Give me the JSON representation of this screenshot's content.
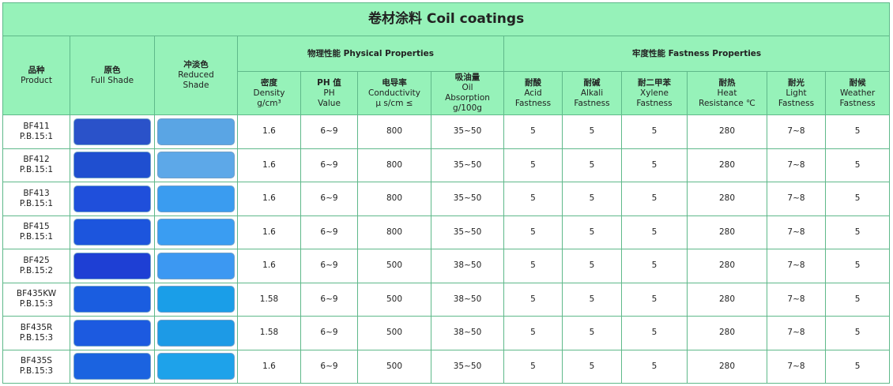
{
  "header": {
    "title": "卷材涂料 Coil coatings",
    "groups": [
      "物理性能 Physical Properties",
      "牢度性能 Fastness Properties"
    ],
    "columns": [
      [
        "品种",
        "Product"
      ],
      [
        "原色",
        "Full Shade"
      ],
      [
        "冲淡色",
        "Reduced",
        "Shade"
      ],
      [
        "密度",
        "Density",
        "g/cm³"
      ],
      [
        "PH 值",
        "PH",
        "Value"
      ],
      [
        "电导率",
        "Conductivity",
        "μ s/cm ≤"
      ],
      [
        "吸油量",
        "Oil",
        "Absorption",
        "g/100g"
      ],
      [
        "耐酸",
        "Acid",
        "Fastness"
      ],
      [
        "耐碱",
        "Alkali",
        "Fastness"
      ],
      [
        "耐二甲苯",
        "Xylene",
        "Fastness"
      ],
      [
        "耐热",
        "Heat",
        "Resistance ℃"
      ],
      [
        "耐光",
        "Light",
        "Fastness"
      ],
      [
        "耐候",
        "Weather",
        "Fastness"
      ]
    ]
  },
  "table": {
    "rows": [
      {
        "product": [
          "BF411",
          "P.B.15:1"
        ],
        "full_shade": "#2a52c9",
        "reduced_shade": "#5aa5e4",
        "cells": [
          1.6,
          "6~9",
          800,
          "35~50",
          5,
          5,
          5,
          280,
          "7~8",
          5
        ]
      },
      {
        "product": [
          "BF412",
          "P.B.15:1"
        ],
        "full_shade": "#1f4fd0",
        "reduced_shade": "#5da8e8",
        "cells": [
          1.6,
          "6~9",
          800,
          "35~50",
          5,
          5,
          5,
          280,
          "7~8",
          5
        ]
      },
      {
        "product": [
          "BF413",
          "P.B.15:1"
        ],
        "full_shade": "#1f4fdb",
        "reduced_shade": "#3a9cf0",
        "cells": [
          1.6,
          "6~9",
          800,
          "35~50",
          5,
          5,
          5,
          280,
          "7~8",
          5
        ]
      },
      {
        "product": [
          "BF415",
          "P.B.15:1"
        ],
        "full_shade": "#1c55dd",
        "reduced_shade": "#3a9df2",
        "cells": [
          1.6,
          "6~9",
          800,
          "35~50",
          5,
          5,
          5,
          280,
          "7~8",
          5
        ]
      },
      {
        "product": [
          "BF425",
          "P.B.15:2"
        ],
        "full_shade": "#1e3fd4",
        "reduced_shade": "#3c98f2",
        "cells": [
          1.6,
          "6~9",
          500,
          "38~50",
          5,
          5,
          5,
          280,
          "7~8",
          5
        ]
      },
      {
        "product": [
          "BF435KW",
          "P.B.15:3"
        ],
        "full_shade": "#1a5de0",
        "reduced_shade": "#1a9ee8",
        "cells": [
          1.58,
          "6~9",
          500,
          "38~50",
          5,
          5,
          5,
          280,
          "7~8",
          5
        ]
      },
      {
        "product": [
          "BF435R",
          "P.B.15:3"
        ],
        "full_shade": "#1c5ae0",
        "reduced_shade": "#1d9ae6",
        "cells": [
          1.58,
          "6~9",
          500,
          "38~50",
          5,
          5,
          5,
          280,
          "7~8",
          5
        ]
      },
      {
        "product": [
          "BF435S",
          "P.B.15:3"
        ],
        "full_shade": "#1b63e0",
        "reduced_shade": "#1ea2ea",
        "cells": [
          1.6,
          "6~9",
          500,
          "35~50",
          5,
          5,
          5,
          280,
          "7~8",
          5
        ]
      }
    ]
  }
}
